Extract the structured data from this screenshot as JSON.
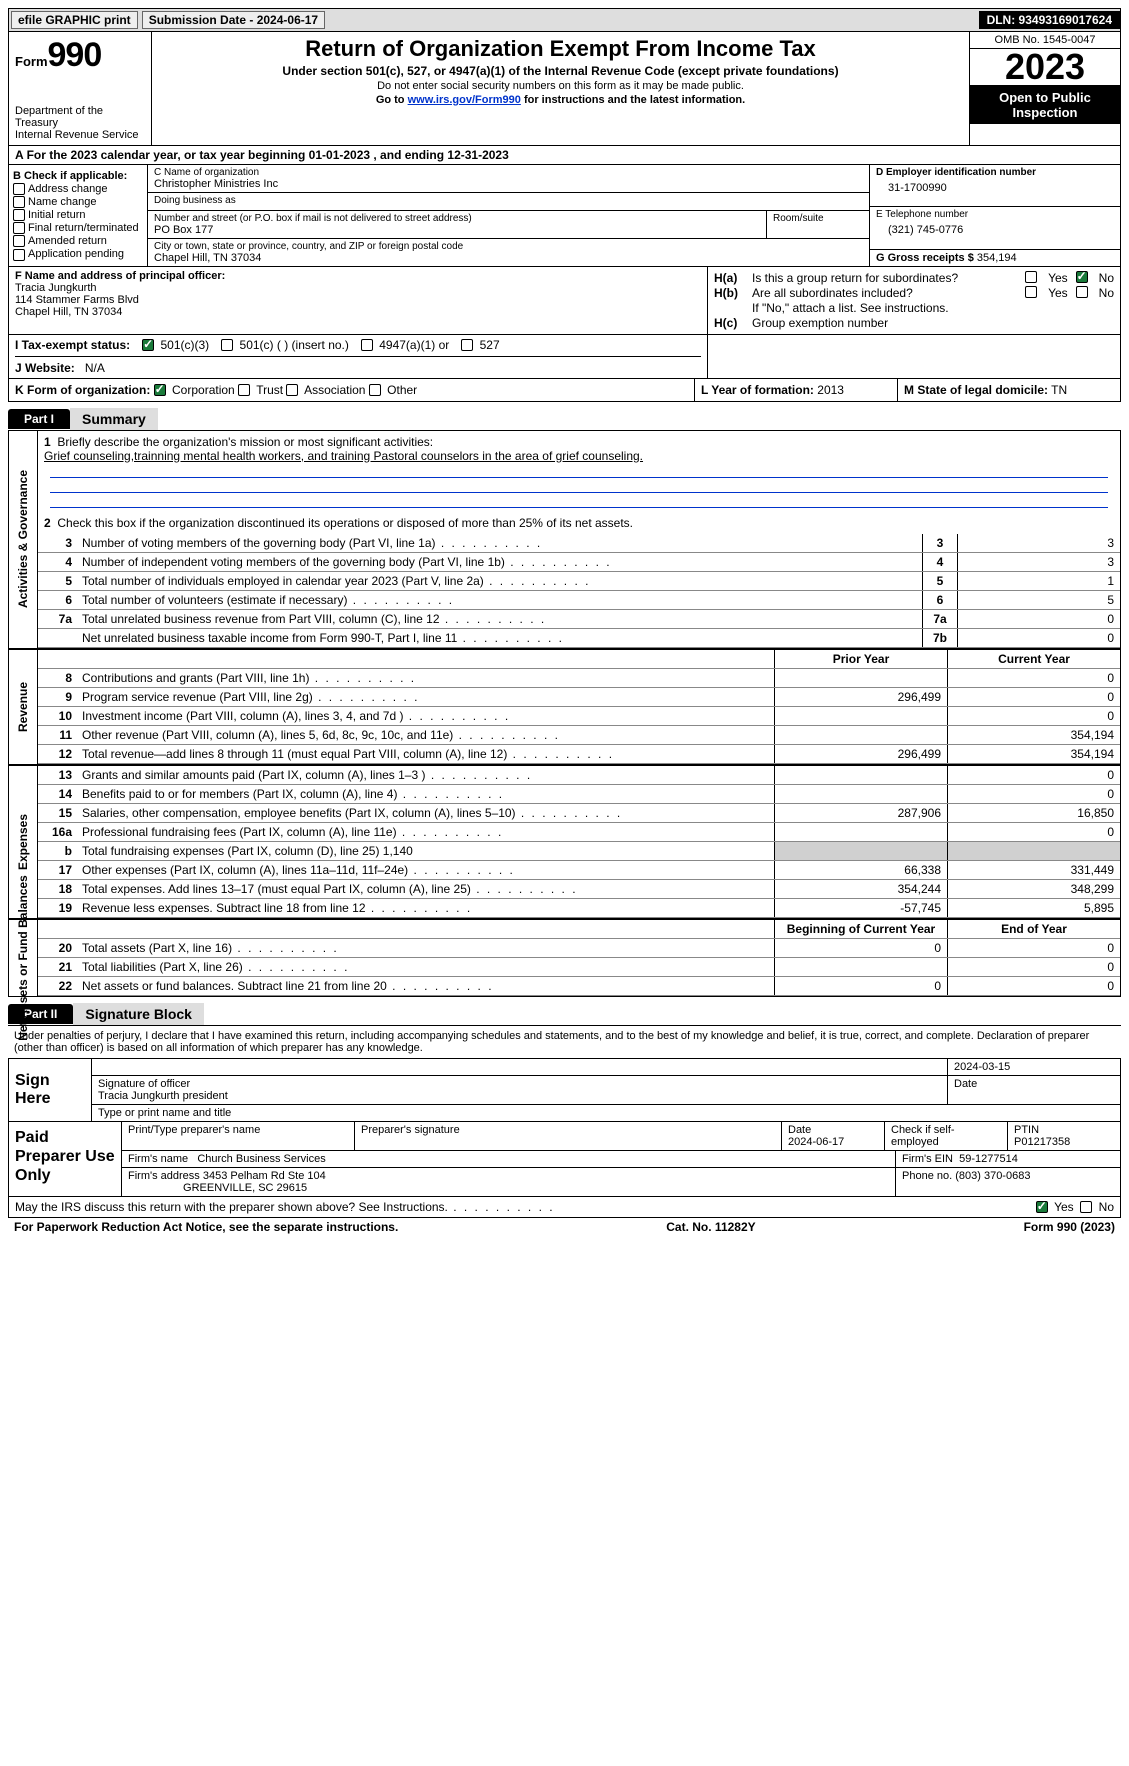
{
  "topbar": {
    "efile": "efile GRAPHIC print",
    "submission": "Submission Date - 2024-06-17",
    "dln": "DLN: 93493169017624"
  },
  "header": {
    "form_word": "Form",
    "form_num": "990",
    "dept": "Department of the Treasury\nInternal Revenue Service",
    "title": "Return of Organization Exempt From Income Tax",
    "subtitle": "Under section 501(c), 527, or 4947(a)(1) of the Internal Revenue Code (except private foundations)",
    "ssn_note": "Do not enter social security numbers on this form as it may be made public.",
    "goto_pre": "Go to ",
    "goto_link": "www.irs.gov/Form990",
    "goto_post": " for instructions and the latest information.",
    "omb": "OMB No. 1545-0047",
    "year": "2023",
    "open": "Open to Public Inspection"
  },
  "lineA": "For the 2023 calendar year, or tax year beginning 01-01-2023   , and ending 12-31-2023",
  "boxB": {
    "title": "B Check if applicable:",
    "items": [
      "Address change",
      "Name change",
      "Initial return",
      "Final return/terminated",
      "Amended return",
      "Application pending"
    ]
  },
  "boxC": {
    "name_label": "C Name of organization",
    "name": "Christopher Ministries Inc",
    "dba_label": "Doing business as",
    "addr_label": "Number and street (or P.O. box if mail is not delivered to street address)",
    "addr": "PO Box 177",
    "room_label": "Room/suite",
    "city_label": "City or town, state or province, country, and ZIP or foreign postal code",
    "city": "Chapel Hill, TN  37034"
  },
  "boxD": {
    "label": "D Employer identification number",
    "value": "31-1700990"
  },
  "boxE": {
    "label": "E Telephone number",
    "value": "(321) 745-0776"
  },
  "boxG": {
    "label": "G Gross receipts $",
    "value": "354,194"
  },
  "boxF": {
    "label": "F  Name and address of principal officer:",
    "name": "Tracia Jungkurth",
    "street": "114 Stammer Farms Blvd",
    "city": "Chapel Hill, TN  37034"
  },
  "boxH": {
    "a_label": "H(a)",
    "a_text": "Is this a group return for subordinates?",
    "b_label": "H(b)",
    "b_text": "Are all subordinates included?",
    "b_note": "If \"No,\" attach a list. See instructions.",
    "c_label": "H(c)",
    "c_text": "Group exemption number",
    "yes": "Yes",
    "no": "No"
  },
  "rowI": {
    "label": "I   Tax-exempt status:",
    "o1": "501(c)(3)",
    "o2": "501(c) (  ) (insert no.)",
    "o3": "4947(a)(1) or",
    "o4": "527"
  },
  "rowJ": {
    "label": "J   Website:",
    "value": "N/A"
  },
  "rowK": {
    "label": "K Form of organization:",
    "o1": "Corporation",
    "o2": "Trust",
    "o3": "Association",
    "o4": "Other"
  },
  "rowL": {
    "label": "L Year of formation:",
    "value": "2013"
  },
  "rowM": {
    "label": "M State of legal domicile:",
    "value": "TN"
  },
  "part1": {
    "tab": "Part I",
    "title": "Summary"
  },
  "gov": {
    "vlabel": "Activities & Governance",
    "l1a": "Briefly describe the organization's mission or most significant activities:",
    "l1b": "Grief counseling,trainning mental health workers, and training Pastoral counselors in the area of grief counseling.",
    "l2": "Check this box        if the organization discontinued its operations or disposed of more than 25% of its net assets.",
    "rows": [
      {
        "n": "3",
        "d": "Number of voting members of the governing body (Part VI, line 1a)",
        "bn": "3",
        "v": "3"
      },
      {
        "n": "4",
        "d": "Number of independent voting members of the governing body (Part VI, line 1b)",
        "bn": "4",
        "v": "3"
      },
      {
        "n": "5",
        "d": "Total number of individuals employed in calendar year 2023 (Part V, line 2a)",
        "bn": "5",
        "v": "1"
      },
      {
        "n": "6",
        "d": "Total number of volunteers (estimate if necessary)",
        "bn": "6",
        "v": "5"
      },
      {
        "n": "7a",
        "d": "Total unrelated business revenue from Part VIII, column (C), line 12",
        "bn": "7a",
        "v": "0"
      },
      {
        "n": "",
        "d": "Net unrelated business taxable income from Form 990-T, Part I, line 11",
        "bn": "7b",
        "v": "0"
      }
    ]
  },
  "rev": {
    "vlabel": "Revenue",
    "hdr_prior": "Prior Year",
    "hdr_curr": "Current Year",
    "rows": [
      {
        "n": "8",
        "d": "Contributions and grants (Part VIII, line 1h)",
        "p": "",
        "c": "0"
      },
      {
        "n": "9",
        "d": "Program service revenue (Part VIII, line 2g)",
        "p": "296,499",
        "c": "0"
      },
      {
        "n": "10",
        "d": "Investment income (Part VIII, column (A), lines 3, 4, and 7d )",
        "p": "",
        "c": "0"
      },
      {
        "n": "11",
        "d": "Other revenue (Part VIII, column (A), lines 5, 6d, 8c, 9c, 10c, and 11e)",
        "p": "",
        "c": "354,194"
      },
      {
        "n": "12",
        "d": "Total revenue—add lines 8 through 11 (must equal Part VIII, column (A), line 12)",
        "p": "296,499",
        "c": "354,194"
      }
    ]
  },
  "exp": {
    "vlabel": "Expenses",
    "rows": [
      {
        "n": "13",
        "d": "Grants and similar amounts paid (Part IX, column (A), lines 1–3 )",
        "p": "",
        "c": "0"
      },
      {
        "n": "14",
        "d": "Benefits paid to or for members (Part IX, column (A), line 4)",
        "p": "",
        "c": "0"
      },
      {
        "n": "15",
        "d": "Salaries, other compensation, employee benefits (Part IX, column (A), lines 5–10)",
        "p": "287,906",
        "c": "16,850"
      },
      {
        "n": "16a",
        "d": "Professional fundraising fees (Part IX, column (A), line 11e)",
        "p": "",
        "c": "0"
      },
      {
        "n": "b",
        "d": "Total fundraising expenses (Part IX, column (D), line 25) 1,140",
        "shaded": true
      },
      {
        "n": "17",
        "d": "Other expenses (Part IX, column (A), lines 11a–11d, 11f–24e)",
        "p": "66,338",
        "c": "331,449"
      },
      {
        "n": "18",
        "d": "Total expenses. Add lines 13–17 (must equal Part IX, column (A), line 25)",
        "p": "354,244",
        "c": "348,299"
      },
      {
        "n": "19",
        "d": "Revenue less expenses. Subtract line 18 from line 12",
        "p": "-57,745",
        "c": "5,895"
      }
    ]
  },
  "net": {
    "vlabel": "Net Assets or Fund Balances",
    "hdr_beg": "Beginning of Current Year",
    "hdr_end": "End of Year",
    "rows": [
      {
        "n": "20",
        "d": "Total assets (Part X, line 16)",
        "p": "0",
        "c": "0"
      },
      {
        "n": "21",
        "d": "Total liabilities (Part X, line 26)",
        "p": "",
        "c": "0"
      },
      {
        "n": "22",
        "d": "Net assets or fund balances. Subtract line 21 from line 20",
        "p": "0",
        "c": "0"
      }
    ]
  },
  "part2": {
    "tab": "Part II",
    "title": "Signature Block"
  },
  "sig": {
    "perjury": "Under penalties of perjury, I declare that I have examined this return, including accompanying schedules and statements, and to the best of my knowledge and belief, it is true, correct, and complete. Declaration of preparer (other than officer) is based on all information of which preparer has any knowledge.",
    "sign_here": "Sign Here",
    "sig_officer": "Signature of officer",
    "date_label": "Date",
    "date_val": "2024-03-15",
    "name": "Tracia Jungkurth president",
    "type_label": "Type or print name and title"
  },
  "prep": {
    "label": "Paid Preparer Use Only",
    "h_name": "Print/Type preparer's name",
    "h_sig": "Preparer's signature",
    "h_date": "Date",
    "date": "2024-06-17",
    "check": "Check        if self-employed",
    "ptin_label": "PTIN",
    "ptin": "P01217358",
    "firm_name_label": "Firm's name",
    "firm_name": "Church Business Services",
    "firm_ein_label": "Firm's EIN",
    "firm_ein": "59-1277514",
    "firm_addr_label": "Firm's address",
    "firm_addr1": "3453 Pelham Rd Ste 104",
    "firm_addr2": "GREENVILLE, SC  29615",
    "phone_label": "Phone no.",
    "phone": "(803) 370-0683"
  },
  "discuss": {
    "text": "May the IRS discuss this return with the preparer shown above? See Instructions.",
    "yes": "Yes",
    "no": "No"
  },
  "footer": {
    "left": "For Paperwork Reduction Act Notice, see the separate instructions.",
    "mid": "Cat. No. 11282Y",
    "right": "Form 990 (2023)"
  }
}
